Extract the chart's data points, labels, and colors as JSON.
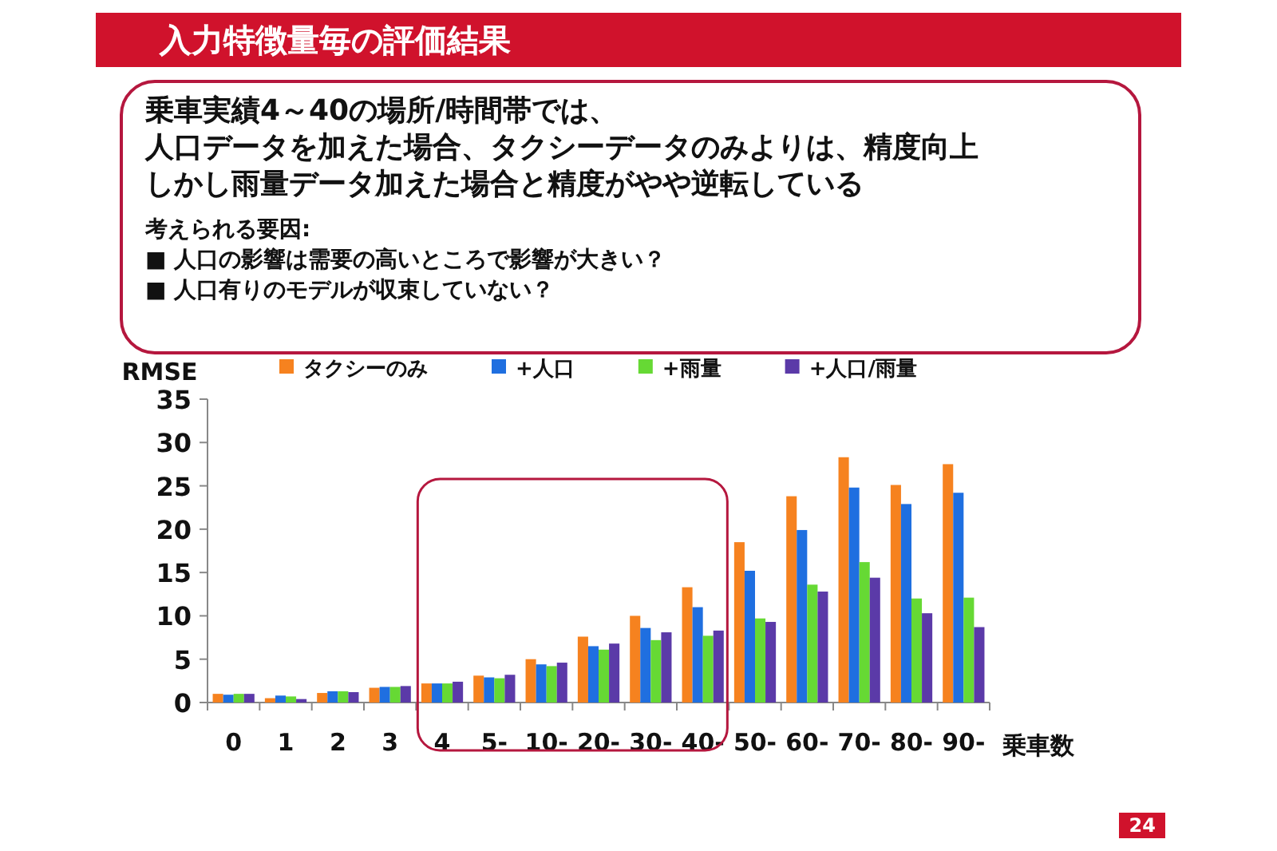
{
  "chart_data": {
    "type": "bar",
    "title": "入力特徴量毎の評価結果",
    "subtitle": "乗車実績4～40の場所/時間帯では、",
    "annotations": [
      "人口データを加えた場合、タクシーデータのみよりは、精度向上",
      "しかし雨量データ加えた場合と精度がやや逆転している",
      "考えられる要因:",
      "■ 人口の影響は需要の高いところで影響が大きい？",
      "■ 人口有りのモデルが収束していない？",
      "24"
    ],
    "ylabel": "RMSE",
    "xlabel": "乗車数",
    "categories": [
      "0",
      "1",
      "2",
      "3",
      "4",
      "5-",
      "10-",
      "20-",
      "30-",
      "40-",
      "50-",
      "60-",
      "70-",
      "80-",
      "90-"
    ],
    "series": [
      {
        "name": "タクシーのみ",
        "color": "#f6821f",
        "values": [
          1.0,
          0.5,
          1.1,
          1.7,
          2.2,
          3.1,
          5.0,
          7.6,
          10.0,
          13.3,
          18.5,
          23.8,
          28.3,
          25.1,
          27.5
        ]
      },
      {
        "name": "+人口",
        "color": "#1f6fe0",
        "values": [
          0.9,
          0.8,
          1.3,
          1.8,
          2.2,
          2.9,
          4.4,
          6.5,
          8.6,
          11.0,
          15.2,
          19.9,
          24.8,
          22.9,
          24.2
        ]
      },
      {
        "name": "+雨量",
        "color": "#66d934",
        "values": [
          1.0,
          0.7,
          1.3,
          1.8,
          2.2,
          2.8,
          4.2,
          6.1,
          7.2,
          7.7,
          9.7,
          13.6,
          16.2,
          12.0,
          12.1
        ]
      },
      {
        "name": "+人口/雨量",
        "color": "#5b3aa8",
        "values": [
          1.0,
          0.4,
          1.2,
          1.9,
          2.4,
          3.2,
          4.6,
          6.8,
          8.1,
          8.3,
          9.3,
          12.8,
          14.4,
          10.3,
          8.7
        ]
      }
    ],
    "ylim": [
      0,
      35
    ],
    "yticks": [
      0,
      5,
      10,
      15,
      20,
      25,
      30,
      35
    ],
    "legend": "top",
    "grid": false
  }
}
